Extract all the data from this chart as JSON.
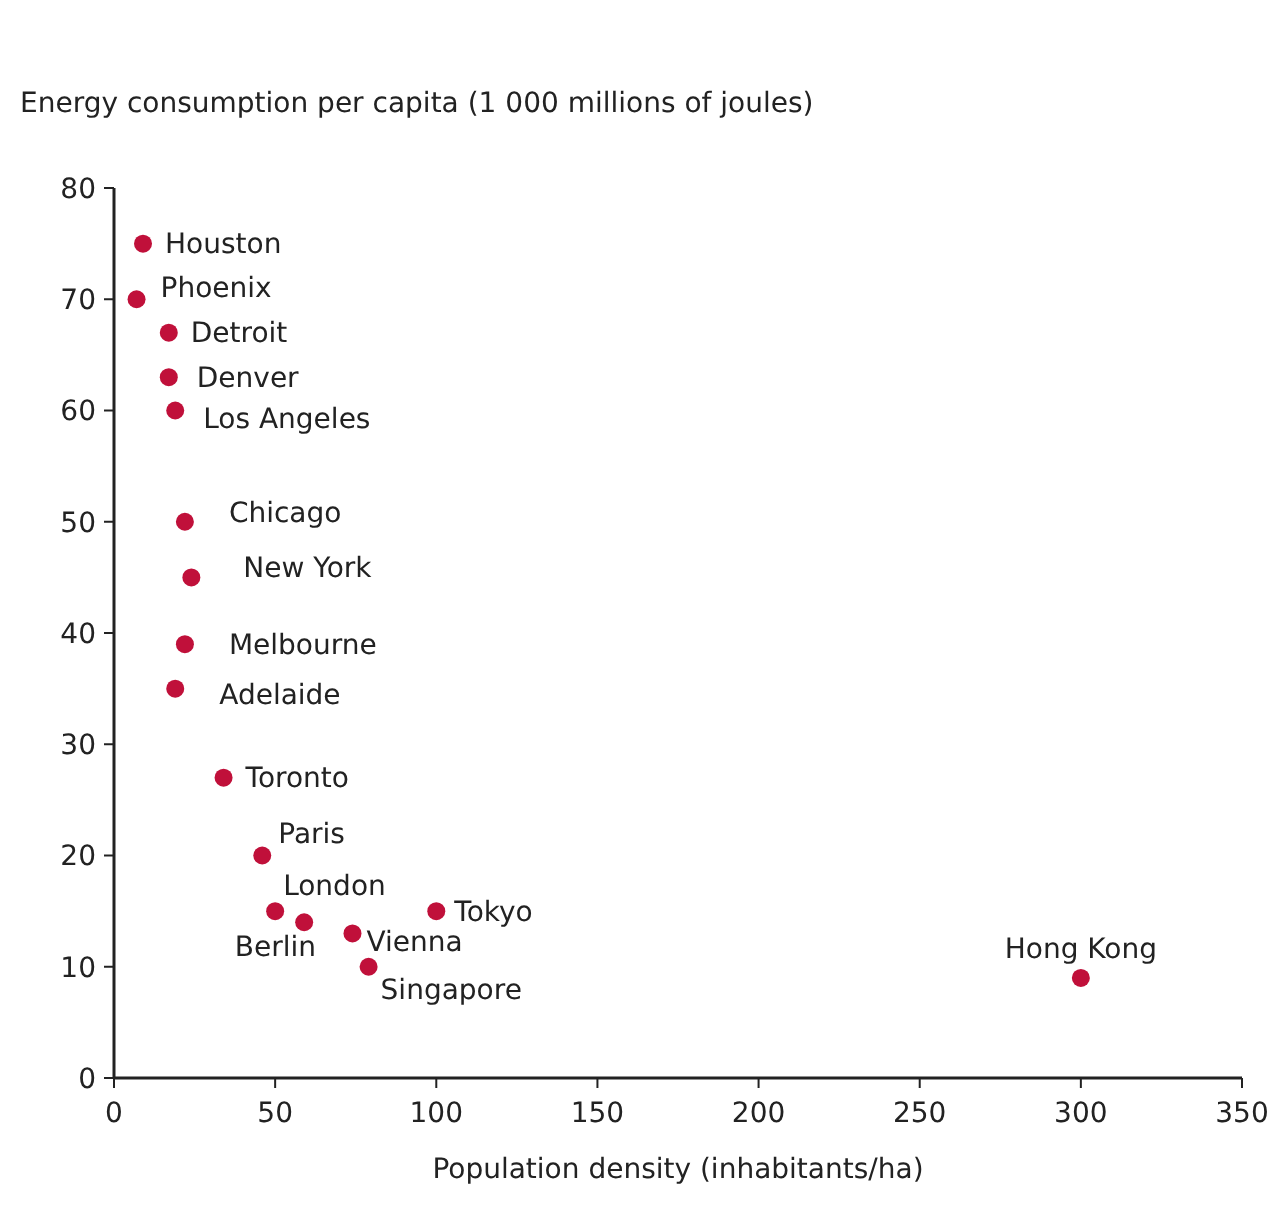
{
  "chart_data": {
    "type": "scatter",
    "ylabel": "Energy consumption per capita (1 000 millions of joules)",
    "xlabel": "Population density (inhabitants/ha)",
    "xlim": [
      0,
      350
    ],
    "xticks": [
      0,
      50,
      100,
      150,
      200,
      250,
      300,
      350
    ],
    "ylim": [
      0,
      80
    ],
    "yticks": [
      0,
      10,
      20,
      30,
      40,
      50,
      60,
      70,
      80
    ],
    "grid": false,
    "marker": "circle",
    "series": [
      {
        "name": "Houston",
        "color": "#c0103a",
        "x": [
          9
        ],
        "values": [
          75
        ]
      },
      {
        "name": "Phoenix",
        "color": "#c0103a",
        "x": [
          7
        ],
        "values": [
          70
        ]
      },
      {
        "name": "Detroit",
        "color": "#c0103a",
        "x": [
          17
        ],
        "values": [
          67
        ]
      },
      {
        "name": "Denver",
        "color": "#c0103a",
        "x": [
          17
        ],
        "values": [
          63
        ]
      },
      {
        "name": "Los Angeles",
        "color": "#c0103a",
        "x": [
          19
        ],
        "values": [
          60
        ]
      },
      {
        "name": "Chicago",
        "color": "#c0103a",
        "x": [
          22
        ],
        "values": [
          50
        ]
      },
      {
        "name": "New York",
        "color": "#c0103a",
        "x": [
          24
        ],
        "values": [
          45
        ]
      },
      {
        "name": "Melbourne",
        "color": "#c0103a",
        "x": [
          22
        ],
        "values": [
          39
        ]
      },
      {
        "name": "Adelaide",
        "color": "#c0103a",
        "x": [
          19
        ],
        "values": [
          35
        ]
      },
      {
        "name": "Toronto",
        "color": "#c0103a",
        "x": [
          34
        ],
        "values": [
          27
        ]
      },
      {
        "name": "Paris",
        "color": "#c0103a",
        "x": [
          46
        ],
        "values": [
          20
        ]
      },
      {
        "name": "London",
        "color": "#c0103a",
        "x": [
          50
        ],
        "values": [
          15
        ]
      },
      {
        "name": "Berlin",
        "color": "#c0103a",
        "x": [
          59
        ],
        "values": [
          14
        ]
      },
      {
        "name": "Vienna",
        "color": "#c0103a",
        "x": [
          74
        ],
        "values": [
          13
        ]
      },
      {
        "name": "Tokyo",
        "color": "#c0103a",
        "x": [
          100
        ],
        "values": [
          15
        ]
      },
      {
        "name": "Singapore",
        "color": "#c0103a",
        "x": [
          79
        ],
        "values": [
          10
        ]
      },
      {
        "name": "Hong Kong",
        "color": "#c0103a",
        "x": [
          300
        ],
        "values": [
          9
        ]
      }
    ]
  }
}
